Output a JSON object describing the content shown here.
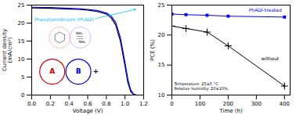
{
  "chart_data": [
    {
      "type": "line",
      "xlabel": "Voltage (V)",
      "ylabel": "Current density\n(mA/cm²)",
      "xlim": [
        0.0,
        1.2
      ],
      "ylim": [
        0,
        25
      ],
      "xticks": [
        {
          "value": 0,
          "label": "0.0"
        },
        0.2,
        0.4,
        0.6,
        0.8,
        {
          "value": 1,
          "label": "1.0"
        },
        1.2
      ],
      "yticks": [
        0,
        5,
        10,
        15,
        20,
        25
      ],
      "grid": false,
      "series": [
        {
          "color": "black",
          "x": [
            0.0,
            0.1,
            0.2,
            0.3,
            0.4,
            0.5,
            0.6,
            0.7,
            0.8,
            0.85,
            0.9,
            0.95,
            1.0,
            1.03,
            1.06,
            1.09,
            1.11,
            1.13,
            1.15
          ],
          "values": [
            24.2,
            24.15,
            24.1,
            24.0,
            23.9,
            23.8,
            23.6,
            23.2,
            22.5,
            21.5,
            19.5,
            15.0,
            8.0,
            3.5,
            1.0,
            0.2,
            0.05,
            0.0,
            0.0
          ]
        },
        {
          "color": "blue",
          "x": [
            0.0,
            0.1,
            0.2,
            0.3,
            0.4,
            0.5,
            0.6,
            0.7,
            0.8,
            0.85,
            0.9,
            0.95,
            1.0,
            1.03,
            1.06,
            1.09,
            1.12,
            1.14,
            1.16,
            1.18
          ],
          "values": [
            24.4,
            24.35,
            24.3,
            24.2,
            24.1,
            24.0,
            23.8,
            23.5,
            22.8,
            22.0,
            20.2,
            16.0,
            9.0,
            4.5,
            1.5,
            0.3,
            0.05,
            0.0,
            0.0,
            0.0
          ]
        }
      ],
      "annotations": [
        {
          "text": "Phenylamidinium (PhADI)",
          "color": "#00BFFF"
        },
        {
          "text": "NH₂",
          "color": "black"
        },
        {
          "text": "NH₂",
          "color": "black"
        },
        {
          "text": "A",
          "color": "#CC0000"
        },
        {
          "text": "B",
          "color": "#0000CC"
        },
        {
          "text": "+",
          "color": "black"
        }
      ]
    },
    {
      "type": "line",
      "xlabel": "Time (h)",
      "ylabel": "PCE (%)",
      "xlim": [
        0,
        420
      ],
      "ylim": [
        10,
        25
      ],
      "xticks": [
        0,
        100,
        200,
        300,
        400
      ],
      "yticks": [
        10,
        15,
        20,
        25
      ],
      "grid": false,
      "x": [
        0,
        50,
        125,
        200,
        400
      ],
      "series": [
        {
          "name": "PhADI-treated",
          "color": "#0000EE",
          "marker": "square",
          "values": [
            23.5,
            23.4,
            23.3,
            23.15,
            23.0
          ],
          "errors": [
            0.15,
            0.15,
            0.15,
            0.15,
            0.2
          ]
        },
        {
          "name": "without",
          "color": "#000000",
          "marker": "plus",
          "values": [
            21.5,
            21.1,
            20.5,
            18.2,
            11.5
          ],
          "errors": [
            0.25,
            0.25,
            0.3,
            0.4,
            0.4
          ]
        }
      ],
      "annotations": [
        {
          "text": "Temperature: 25±5 °C",
          "color": "black"
        },
        {
          "text": "Relative humidity: 20±10%.",
          "color": "black"
        }
      ]
    }
  ]
}
